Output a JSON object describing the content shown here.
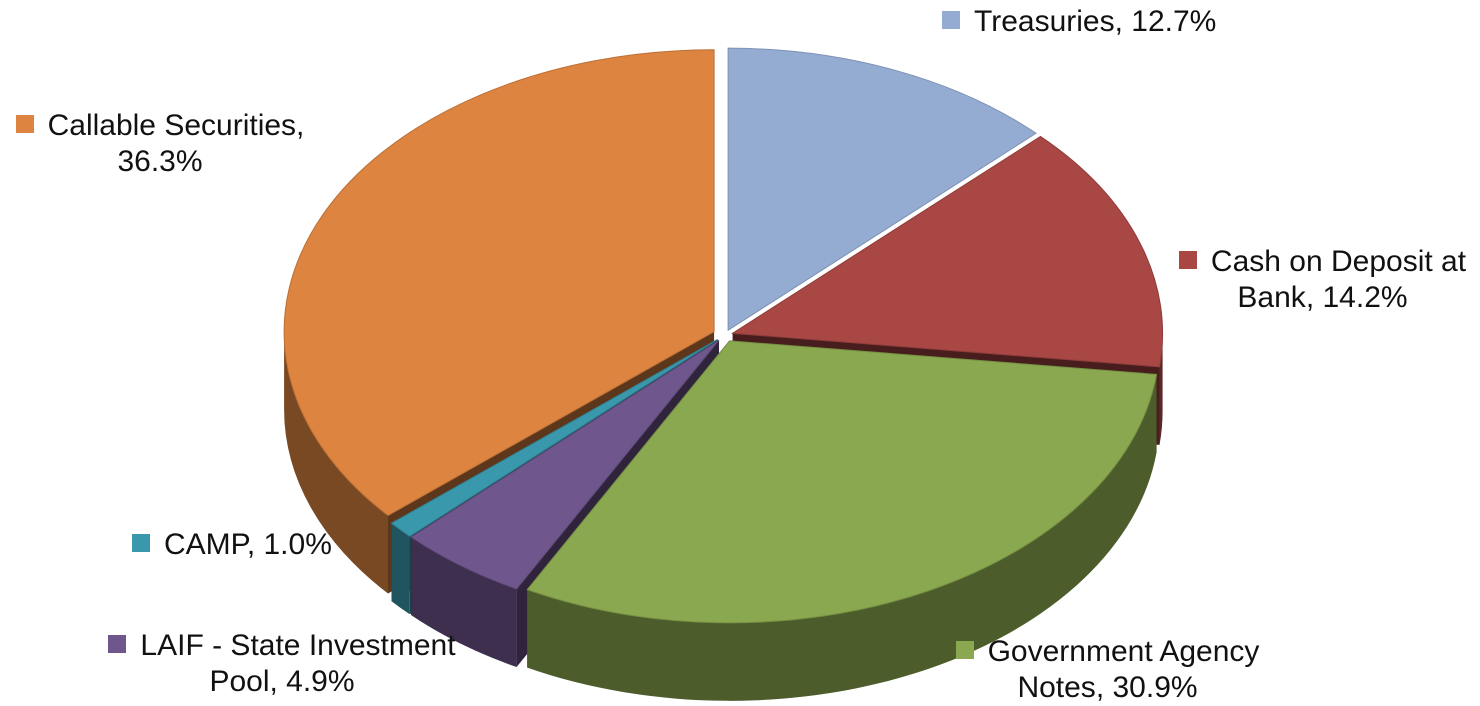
{
  "chart_data": {
    "type": "pie",
    "style": "3d-exploded",
    "legend": "data labels next to slices",
    "slices": [
      {
        "label": "Treasuries",
        "value": 12.7,
        "value_label": "12.7%",
        "color": "#94abd2"
      },
      {
        "label": "Cash on Deposit at Bank",
        "value": 14.2,
        "value_label": "14.2%",
        "color": "#a84744"
      },
      {
        "label": "Government Agency Notes",
        "value": 30.9,
        "value_label": "30.9%",
        "color": "#8aa84f"
      },
      {
        "label": "LAIF - State Investment Pool",
        "value": 4.9,
        "value_label": "4.9%",
        "color": "#6f568c"
      },
      {
        "label": "CAMP",
        "value": 1.0,
        "value_label": "1.0%",
        "color": "#3a98ad"
      },
      {
        "label": "Callable Securities",
        "value": 36.3,
        "value_label": "36.3%",
        "color": "#dc8440"
      }
    ]
  }
}
